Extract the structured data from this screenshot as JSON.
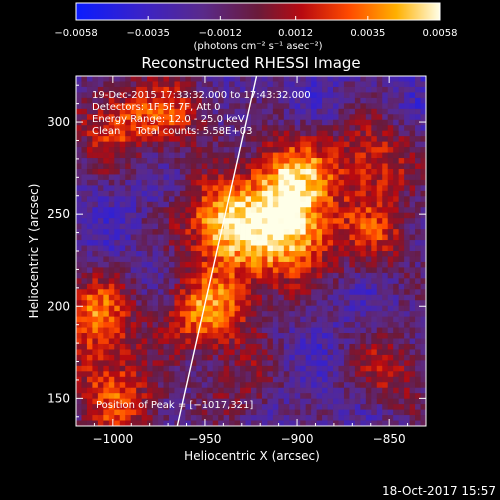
{
  "chart_data": {
    "type": "heatmap",
    "title": "Reconstructed RHESSI Image",
    "xlabel": "Heliocentric X (arcsec)",
    "ylabel": "Heliocentric Y (arcsec)",
    "xlim": [
      -1020,
      -830
    ],
    "ylim": [
      135,
      325
    ],
    "x_ticks": [
      -1000,
      -950,
      -900,
      -850
    ],
    "y_ticks": [
      150,
      200,
      250,
      300
    ],
    "x_tick_labels": [
      "−1000",
      "−950",
      "−900",
      "−850"
    ],
    "y_tick_labels": [
      "150",
      "200",
      "250",
      "300"
    ],
    "colorbar": {
      "min": -0.0058,
      "max": 0.0058,
      "ticks": [
        -0.0058,
        -0.0035,
        -0.0012,
        0.0012,
        0.0035,
        0.0058
      ],
      "tick_labels": [
        "−0.0058",
        "−0.0035",
        "−0.0012",
        "0.0012",
        "0.0035",
        "0.0058"
      ],
      "unit_label": "(photons cm⁻² s⁻¹ asec⁻²)"
    },
    "annotations": [
      "19-Dec-2015 17:33:32.000 to 17:43:32.000",
      "Detectors: 1F 5F 7F, Att 0",
      "Energy Range: 12.0 - 25.0 keV",
      "Clean     Total counts: 5.58E+03"
    ],
    "peak_label": "Position of Peak = [−1017,321]",
    "sources": [
      {
        "x": -940,
        "y": 245,
        "amp": 1.0
      },
      {
        "x": -905,
        "y": 270,
        "amp": 0.9
      },
      {
        "x": -900,
        "y": 240,
        "amp": 0.85
      },
      {
        "x": -950,
        "y": 195,
        "amp": 0.75
      },
      {
        "x": -1010,
        "y": 195,
        "amp": 0.7
      },
      {
        "x": -1000,
        "y": 300,
        "amp": 0.6
      },
      {
        "x": -965,
        "y": 305,
        "amp": 0.5
      },
      {
        "x": -860,
        "y": 280,
        "amp": 0.6
      },
      {
        "x": -855,
        "y": 240,
        "amp": 0.5
      },
      {
        "x": -1005,
        "y": 160,
        "amp": 0.45
      },
      {
        "x": -850,
        "y": 165,
        "amp": 0.45
      },
      {
        "x": -990,
        "y": 140,
        "amp": 0.4
      },
      {
        "x": -920,
        "y": 215,
        "amp": 0.35
      },
      {
        "x": -930,
        "y": 155,
        "amp": 0.3
      }
    ],
    "limb_line": [
      [
        -965,
        135
      ],
      [
        -922,
        325
      ]
    ]
  },
  "footer": {
    "date": "18-Oct-2017 15:57"
  }
}
